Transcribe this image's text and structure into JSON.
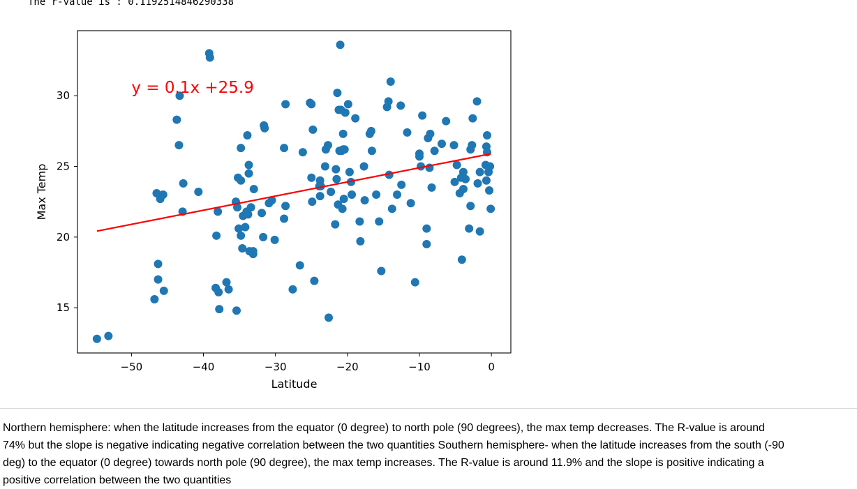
{
  "output": {
    "r_value_line": "The r-value is : 0.1192514846290338"
  },
  "colors": {
    "point": "#1f77b4",
    "regression": "#ff0000"
  },
  "chart_data": {
    "type": "scatter",
    "title": "",
    "xlabel": "Latitude",
    "ylabel": "Max Temp",
    "xlim": [
      -57.5,
      2.7
    ],
    "ylim": [
      11.8,
      34.6
    ],
    "xticks": [
      -50,
      -40,
      -30,
      -20,
      -10,
      0
    ],
    "yticks": [
      15,
      20,
      25,
      30
    ],
    "xtick_labels": [
      "−50",
      "−40",
      "−30",
      "−20",
      "−10",
      "0"
    ],
    "ytick_labels": [
      "15",
      "20",
      "25",
      "30"
    ],
    "annotation": "y = 0.1x +25.9",
    "annotation_pos": [
      -50,
      30.2
    ],
    "regression": {
      "slope": 0.1,
      "intercept": 25.9,
      "x_range": [
        -54.8,
        -0.1
      ]
    },
    "points": [
      [
        -54.8,
        12.8
      ],
      [
        -53.2,
        13.0
      ],
      [
        -46.8,
        15.6
      ],
      [
        -46.5,
        23.1
      ],
      [
        -46.3,
        18.1
      ],
      [
        -46.3,
        17.0
      ],
      [
        -46.0,
        22.7
      ],
      [
        -45.6,
        23.0
      ],
      [
        -45.5,
        16.2
      ],
      [
        -43.7,
        28.3
      ],
      [
        -43.4,
        26.5
      ],
      [
        -43.3,
        30.0
      ],
      [
        -42.9,
        21.8
      ],
      [
        -42.8,
        23.8
      ],
      [
        -40.7,
        23.2
      ],
      [
        -39.2,
        33.0
      ],
      [
        -39.1,
        32.7
      ],
      [
        -38.3,
        16.4
      ],
      [
        -38.2,
        20.1
      ],
      [
        -38.0,
        21.8
      ],
      [
        -37.9,
        16.1
      ],
      [
        -37.8,
        14.9
      ],
      [
        -36.8,
        16.8
      ],
      [
        -36.5,
        16.3
      ],
      [
        -35.5,
        22.5
      ],
      [
        -35.4,
        14.8
      ],
      [
        -35.3,
        22.1
      ],
      [
        -35.2,
        24.2
      ],
      [
        -35.1,
        20.6
      ],
      [
        -34.8,
        20.1
      ],
      [
        -34.8,
        24.0
      ],
      [
        -34.8,
        26.3
      ],
      [
        -34.6,
        19.2
      ],
      [
        -34.5,
        21.5
      ],
      [
        -34.2,
        20.7
      ],
      [
        -34.0,
        21.8
      ],
      [
        -33.9,
        27.2
      ],
      [
        -33.8,
        21.6
      ],
      [
        -33.7,
        25.1
      ],
      [
        -33.7,
        24.5
      ],
      [
        -33.6,
        19.0
      ],
      [
        -33.4,
        22.1
      ],
      [
        -33.1,
        18.8
      ],
      [
        -33.1,
        19.0
      ],
      [
        -33.0,
        23.4
      ],
      [
        -31.9,
        21.7
      ],
      [
        -31.7,
        20.0
      ],
      [
        -31.6,
        27.9
      ],
      [
        -31.5,
        27.7
      ],
      [
        -30.9,
        22.4
      ],
      [
        -30.5,
        22.6
      ],
      [
        -30.1,
        19.8
      ],
      [
        -28.8,
        26.3
      ],
      [
        -28.8,
        21.3
      ],
      [
        -28.6,
        29.4
      ],
      [
        -28.6,
        22.2
      ],
      [
        -27.6,
        16.3
      ],
      [
        -26.6,
        18.0
      ],
      [
        -26.2,
        26.0
      ],
      [
        -25.2,
        29.5
      ],
      [
        -25.0,
        29.4
      ],
      [
        -25.0,
        24.2
      ],
      [
        -24.9,
        22.5
      ],
      [
        -24.8,
        27.6
      ],
      [
        -24.6,
        16.9
      ],
      [
        -23.9,
        23.6
      ],
      [
        -23.8,
        22.9
      ],
      [
        -23.8,
        24.0
      ],
      [
        -23.7,
        23.6
      ],
      [
        -23.1,
        25.0
      ],
      [
        -23.0,
        26.2
      ],
      [
        -22.7,
        26.5
      ],
      [
        -22.6,
        14.3
      ],
      [
        -22.3,
        23.2
      ],
      [
        -21.7,
        20.9
      ],
      [
        -21.6,
        24.8
      ],
      [
        -21.5,
        24.1
      ],
      [
        -21.4,
        30.2
      ],
      [
        -21.3,
        22.3
      ],
      [
        -21.2,
        29.0
      ],
      [
        -21.1,
        26.1
      ],
      [
        -21.0,
        33.6
      ],
      [
        -20.9,
        29.0
      ],
      [
        -20.8,
        26.1
      ],
      [
        -20.7,
        22.0
      ],
      [
        -20.6,
        27.3
      ],
      [
        -20.6,
        26.2
      ],
      [
        -20.5,
        22.7
      ],
      [
        -20.4,
        26.2
      ],
      [
        -20.3,
        28.8
      ],
      [
        -19.9,
        29.4
      ],
      [
        -19.7,
        24.6
      ],
      [
        -19.5,
        23.9
      ],
      [
        -19.4,
        23.0
      ],
      [
        -18.9,
        28.4
      ],
      [
        -18.3,
        21.1
      ],
      [
        -18.2,
        19.7
      ],
      [
        -17.7,
        25.0
      ],
      [
        -17.6,
        22.6
      ],
      [
        -16.9,
        27.3
      ],
      [
        -16.7,
        27.5
      ],
      [
        -16.6,
        26.1
      ],
      [
        -16.0,
        23.0
      ],
      [
        -15.6,
        21.1
      ],
      [
        -15.3,
        17.6
      ],
      [
        -14.5,
        29.2
      ],
      [
        -14.3,
        29.6
      ],
      [
        -14.2,
        24.4
      ],
      [
        -14.0,
        31.0
      ],
      [
        -13.8,
        22.0
      ],
      [
        -13.1,
        23.0
      ],
      [
        -12.6,
        29.3
      ],
      [
        -12.5,
        23.7
      ],
      [
        -11.7,
        27.4
      ],
      [
        -11.2,
        22.4
      ],
      [
        -10.6,
        16.8
      ],
      [
        -10.0,
        25.7
      ],
      [
        -10.0,
        25.9
      ],
      [
        -9.8,
        25.0
      ],
      [
        -9.6,
        28.6
      ],
      [
        -9.0,
        20.6
      ],
      [
        -9.0,
        19.5
      ],
      [
        -8.8,
        27.0
      ],
      [
        -8.6,
        24.9
      ],
      [
        -8.5,
        27.3
      ],
      [
        -8.3,
        23.5
      ],
      [
        -7.9,
        26.1
      ],
      [
        -6.9,
        26.6
      ],
      [
        -6.3,
        28.2
      ],
      [
        -5.2,
        26.5
      ],
      [
        -5.1,
        23.9
      ],
      [
        -4.8,
        25.1
      ],
      [
        -4.4,
        23.1
      ],
      [
        -4.2,
        24.2
      ],
      [
        -4.1,
        18.4
      ],
      [
        -3.9,
        24.6
      ],
      [
        -3.9,
        23.4
      ],
      [
        -3.6,
        24.1
      ],
      [
        -3.1,
        20.6
      ],
      [
        -2.9,
        26.2
      ],
      [
        -2.9,
        22.2
      ],
      [
        -2.7,
        26.5
      ],
      [
        -2.6,
        28.4
      ],
      [
        -2.0,
        29.6
      ],
      [
        -1.9,
        23.8
      ],
      [
        -1.6,
        24.6
      ],
      [
        -1.6,
        20.4
      ],
      [
        -0.8,
        25.1
      ],
      [
        -0.7,
        24.0
      ],
      [
        -0.7,
        26.4
      ],
      [
        -0.6,
        27.2
      ],
      [
        -0.6,
        26.0
      ],
      [
        -0.4,
        24.6
      ],
      [
        -0.3,
        23.3
      ],
      [
        -0.2,
        25.0
      ],
      [
        -0.1,
        22.0
      ]
    ]
  },
  "markdown": {
    "lines": [
      "Northern hemisphere: when the latitude increases from the equator (0 degree) to north pole (90 degrees), the max temp decreases. The R-value is around",
      "74% but the slope is negative indicating negative correlation between the two quantities Southern hemisphere- when the latitude increases from the south (-90",
      "deg) to the equator (0 degree) towards north pole (90 degree), the max temp increases. The R-value is around 11.9% and the slope is positive indicating a",
      "positive correlation between the two quantities"
    ]
  }
}
